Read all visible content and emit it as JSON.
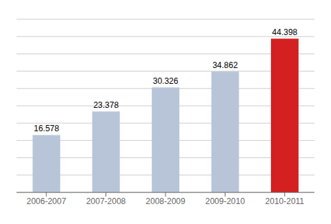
{
  "chart_data": {
    "type": "bar",
    "categories": [
      "2006-2007",
      "2007-2008",
      "2008-2009",
      "2009-2010",
      "2010-2011"
    ],
    "values": [
      16578,
      23378,
      30326,
      34862,
      44398
    ],
    "value_labels": [
      "16.578",
      "23.378",
      "30.326",
      "34.862",
      "44.398"
    ],
    "data_labels": true,
    "colors": [
      "#b8c5d8",
      "#b8c5d8",
      "#b8c5d8",
      "#b8c5d8",
      "#d42020"
    ],
    "ylim": [
      0,
      50000
    ],
    "yticks": [
      0,
      5000,
      10000,
      15000,
      20000,
      25000,
      30000,
      35000,
      40000,
      45000,
      50000
    ],
    "grid": true,
    "tick_labels": "x"
  }
}
